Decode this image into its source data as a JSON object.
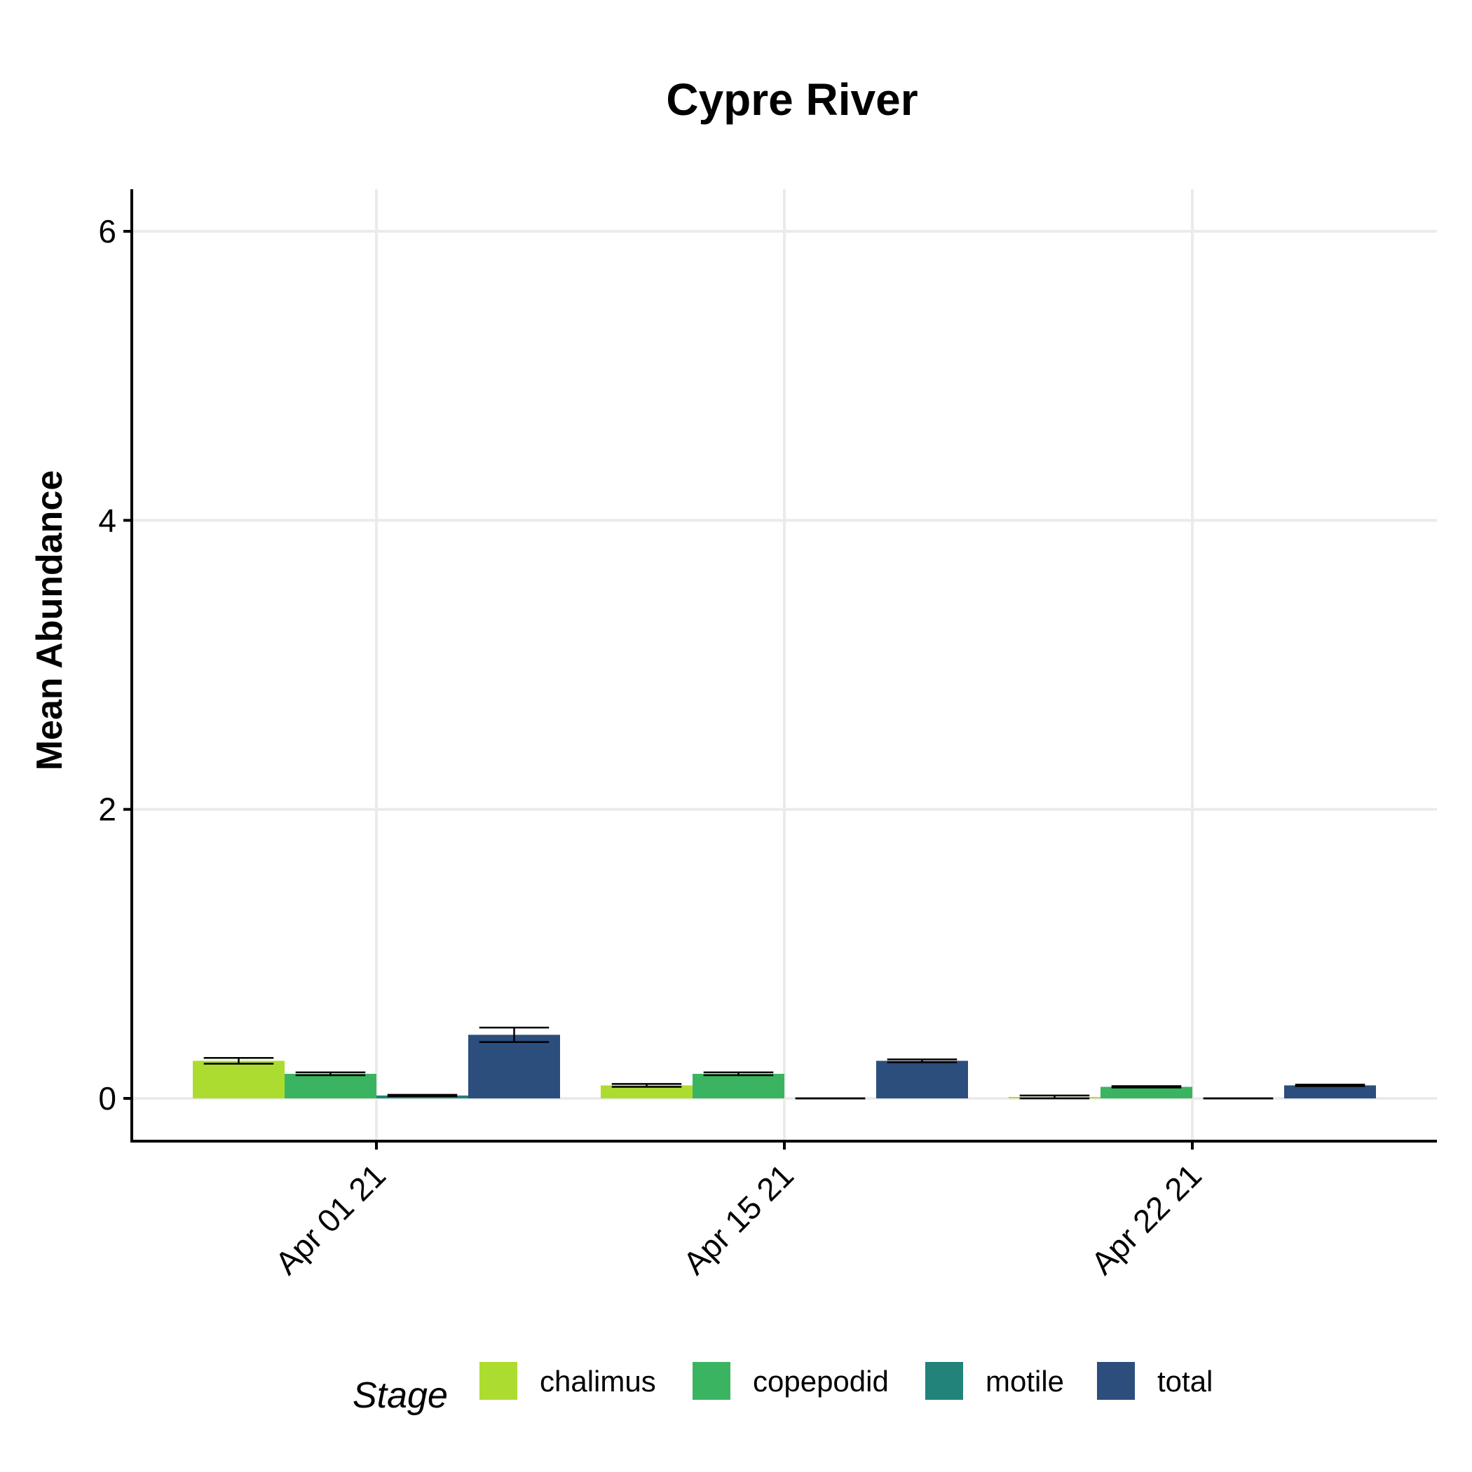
{
  "chart_data": {
    "type": "bar",
    "title": "Cypre River",
    "xlabel": "",
    "ylabel": "Mean Abundance",
    "categories": [
      "Apr 01 21",
      "Apr 15 21",
      "Apr 22 21"
    ],
    "ylim": [
      -0.3,
      6.3
    ],
    "yticks": [
      0,
      2,
      4,
      6
    ],
    "grid": true,
    "legend": {
      "title": "Stage",
      "position": "bottom"
    },
    "series": [
      {
        "name": "chalimus",
        "color": "#addc30",
        "values": [
          0.26,
          0.09,
          0.01
        ],
        "errors": [
          0.02,
          0.01,
          0.01
        ]
      },
      {
        "name": "copepodid",
        "color": "#3bb461",
        "values": [
          0.17,
          0.17,
          0.08
        ],
        "errors": [
          0.01,
          0.01,
          0.005
        ]
      },
      {
        "name": "motile",
        "color": "#21837a",
        "values": [
          0.02,
          0.0,
          0.0
        ],
        "errors": [
          0.005,
          0.0,
          0.0
        ]
      },
      {
        "name": "total",
        "color": "#2b4e7d",
        "values": [
          0.44,
          0.26,
          0.09
        ],
        "errors": [
          0.05,
          0.01,
          0.005
        ]
      }
    ]
  }
}
